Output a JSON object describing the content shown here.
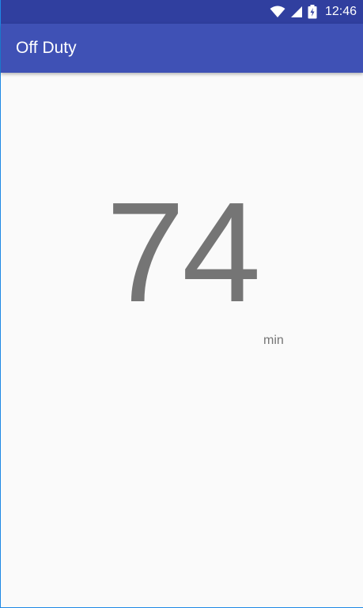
{
  "status_bar": {
    "time": "12:46",
    "icons": [
      "wifi-icon",
      "signal-icon",
      "battery-charging-icon"
    ]
  },
  "app_bar": {
    "title": "Off Duty"
  },
  "main": {
    "value": "74",
    "unit": "min"
  },
  "colors": {
    "status_bar": "#303f9f",
    "app_bar": "#3f51b5",
    "background": "#fafafa",
    "value_text": "#757575"
  }
}
